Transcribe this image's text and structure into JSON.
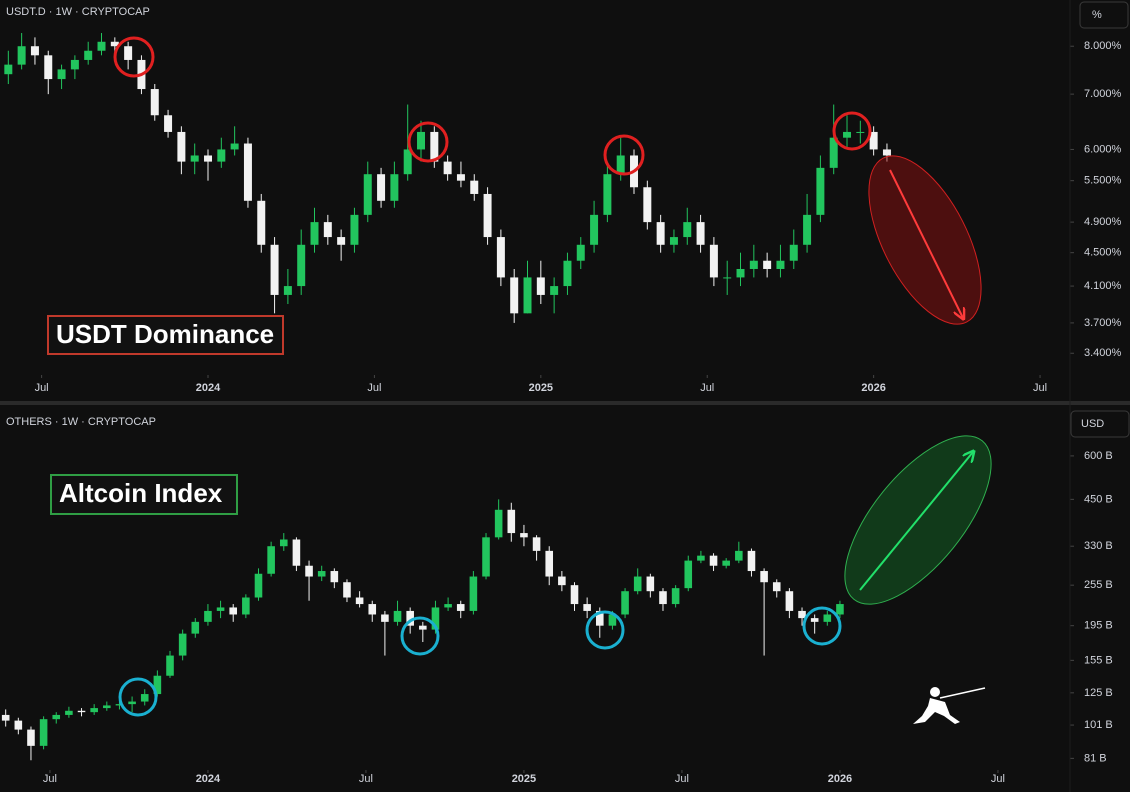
{
  "chart_data": [
    {
      "type": "candlestick",
      "title": "USDT.D · 1W · CRYPTOCAP",
      "annotation": "USDT Dominance",
      "unit": "%",
      "log_scale": true,
      "grid": false,
      "up_color": "#22c55e",
      "down_color": "#f2f2f2",
      "xlim": [
        2023.375,
        2026.59
      ],
      "xticks": [
        {
          "value": 2023.5,
          "label": "Jul"
        },
        2024,
        {
          "value": 2024.5,
          "label": "Jul"
        },
        2025,
        {
          "value": 2025.5,
          "label": "Jul"
        },
        2026,
        {
          "value": 2026.5,
          "label": "Jul"
        }
      ],
      "ylim": [
        3.2,
        9.1
      ],
      "yticks": [
        {
          "value": 8,
          "label": "8.000%"
        },
        {
          "value": 7,
          "label": "7.000%"
        },
        {
          "value": 6,
          "label": "6.000%"
        },
        {
          "value": 5.5,
          "label": "5.500%"
        },
        {
          "value": 4.9,
          "label": "4.900%"
        },
        {
          "value": 4.5,
          "label": "4.500%"
        },
        {
          "value": 4.1,
          "label": "4.100%"
        },
        {
          "value": 3.7,
          "label": "3.700%"
        },
        {
          "value": 3.4,
          "label": "3.400%"
        }
      ],
      "x": [
        2023.4,
        2023.44,
        2023.48,
        2023.52,
        2023.56,
        2023.6,
        2023.64,
        2023.68,
        2023.72,
        2023.76,
        2023.8,
        2023.84,
        2023.88,
        2023.92,
        2023.96,
        2024.0,
        2024.04,
        2024.08,
        2024.12,
        2024.16,
        2024.2,
        2024.24,
        2024.28,
        2024.32,
        2024.36,
        2024.4,
        2024.44,
        2024.48,
        2024.52,
        2024.56,
        2024.6,
        2024.64,
        2024.68,
        2024.72,
        2024.76,
        2024.8,
        2024.84,
        2024.88,
        2024.92,
        2024.96,
        2025.0,
        2025.04,
        2025.08,
        2025.12,
        2025.16,
        2025.2,
        2025.24,
        2025.28,
        2025.32,
        2025.36,
        2025.4,
        2025.44,
        2025.48,
        2025.52,
        2025.56,
        2025.6,
        2025.64,
        2025.68,
        2025.72,
        2025.76,
        2025.8,
        2025.84,
        2025.88,
        2025.92,
        2025.96,
        2026.0,
        2026.04
      ],
      "candles": [
        [
          7.4,
          7.9,
          7.2,
          7.6
        ],
        [
          7.6,
          8.3,
          7.5,
          8.0
        ],
        [
          8.0,
          8.2,
          7.6,
          7.8
        ],
        [
          7.8,
          7.9,
          7.0,
          7.3
        ],
        [
          7.3,
          7.6,
          7.1,
          7.5
        ],
        [
          7.5,
          7.8,
          7.3,
          7.7
        ],
        [
          7.7,
          8.1,
          7.6,
          7.9
        ],
        [
          7.9,
          8.3,
          7.8,
          8.1
        ],
        [
          8.1,
          8.2,
          7.8,
          8.0
        ],
        [
          8.0,
          8.1,
          7.5,
          7.7
        ],
        [
          7.7,
          7.8,
          7.0,
          7.1
        ],
        [
          7.1,
          7.2,
          6.5,
          6.6
        ],
        [
          6.6,
          6.7,
          6.2,
          6.3
        ],
        [
          6.3,
          6.4,
          5.6,
          5.8
        ],
        [
          5.8,
          6.1,
          5.6,
          5.9
        ],
        [
          5.9,
          6.0,
          5.5,
          5.8
        ],
        [
          5.8,
          6.2,
          5.7,
          6.0
        ],
        [
          6.0,
          6.4,
          5.9,
          6.1
        ],
        [
          6.1,
          6.2,
          5.1,
          5.2
        ],
        [
          5.2,
          5.3,
          4.5,
          4.6
        ],
        [
          4.6,
          4.7,
          3.8,
          4.0
        ],
        [
          4.0,
          4.3,
          3.9,
          4.1
        ],
        [
          4.1,
          4.8,
          4.0,
          4.6
        ],
        [
          4.6,
          5.1,
          4.5,
          4.9
        ],
        [
          4.9,
          5.0,
          4.6,
          4.7
        ],
        [
          4.7,
          4.8,
          4.4,
          4.6
        ],
        [
          4.6,
          5.1,
          4.5,
          5.0
        ],
        [
          5.0,
          5.8,
          4.9,
          5.6
        ],
        [
          5.6,
          5.7,
          5.1,
          5.2
        ],
        [
          5.2,
          5.8,
          5.1,
          5.6
        ],
        [
          5.6,
          6.8,
          5.5,
          6.0
        ],
        [
          6.0,
          6.5,
          5.8,
          6.3
        ],
        [
          6.3,
          6.4,
          5.7,
          5.8
        ],
        [
          5.8,
          5.9,
          5.5,
          5.6
        ],
        [
          5.6,
          5.8,
          5.4,
          5.5
        ],
        [
          5.5,
          5.6,
          5.2,
          5.3
        ],
        [
          5.3,
          5.4,
          4.6,
          4.7
        ],
        [
          4.7,
          4.8,
          4.1,
          4.2
        ],
        [
          4.2,
          4.3,
          3.7,
          3.8
        ],
        [
          3.8,
          4.4,
          3.8,
          4.2
        ],
        [
          4.2,
          4.4,
          3.9,
          4.0
        ],
        [
          4.0,
          4.2,
          3.8,
          4.1
        ],
        [
          4.1,
          4.5,
          4.0,
          4.4
        ],
        [
          4.4,
          4.7,
          4.3,
          4.6
        ],
        [
          4.6,
          5.2,
          4.5,
          5.0
        ],
        [
          5.0,
          5.8,
          4.9,
          5.6
        ],
        [
          5.6,
          6.2,
          5.5,
          5.9
        ],
        [
          5.9,
          6.0,
          5.3,
          5.4
        ],
        [
          5.4,
          5.5,
          4.8,
          4.9
        ],
        [
          4.9,
          5.0,
          4.5,
          4.6
        ],
        [
          4.6,
          4.8,
          4.5,
          4.7
        ],
        [
          4.7,
          5.1,
          4.6,
          4.9
        ],
        [
          4.9,
          5.0,
          4.5,
          4.6
        ],
        [
          4.6,
          4.7,
          4.1,
          4.2
        ],
        [
          4.2,
          4.4,
          4.0,
          4.2
        ],
        [
          4.2,
          4.5,
          4.1,
          4.3
        ],
        [
          4.3,
          4.6,
          4.2,
          4.4
        ],
        [
          4.4,
          4.5,
          4.2,
          4.3
        ],
        [
          4.3,
          4.6,
          4.2,
          4.4
        ],
        [
          4.4,
          4.8,
          4.3,
          4.6
        ],
        [
          4.6,
          5.3,
          4.5,
          5.0
        ],
        [
          5.0,
          5.9,
          4.9,
          5.7
        ],
        [
          5.7,
          6.8,
          5.6,
          6.2
        ],
        [
          6.2,
          6.6,
          6.0,
          6.3
        ],
        [
          6.3,
          6.5,
          6.1,
          6.3
        ],
        [
          6.3,
          6.4,
          5.9,
          6.0
        ],
        [
          6.0,
          6.1,
          5.8,
          5.9
        ]
      ]
    },
    {
      "type": "candlestick",
      "title": "OTHERS · 1W · CRYPTOCAP",
      "annotation": "Altcoin Index",
      "unit": "USD",
      "log_scale": true,
      "grid": false,
      "up_color": "#22c55e",
      "down_color": "#f2f2f2",
      "xlim": [
        2023.342,
        2026.728
      ],
      "xticks": [
        {
          "value": 2023.5,
          "label": "Jul"
        },
        2024,
        {
          "value": 2024.5,
          "label": "Jul"
        },
        2025,
        {
          "value": 2025.5,
          "label": "Jul"
        },
        2026,
        {
          "value": 2026.5,
          "label": "Jul"
        }
      ],
      "ylim": [
        75,
        824
      ],
      "yticks": [
        {
          "value": 600,
          "label": "600 B"
        },
        {
          "value": 450,
          "label": "450 B"
        },
        {
          "value": 330,
          "label": "330 B"
        },
        {
          "value": 255,
          "label": "255 B"
        },
        {
          "value": 195,
          "label": "195 B"
        },
        {
          "value": 155,
          "label": "155 B"
        },
        {
          "value": 125,
          "label": "125 B"
        },
        {
          "value": 101,
          "label": "101 B"
        },
        {
          "value": 81,
          "label": "81 B"
        }
      ],
      "x": [
        2023.36,
        2023.4,
        2023.44,
        2023.48,
        2023.52,
        2023.56,
        2023.6,
        2023.64,
        2023.68,
        2023.72,
        2023.76,
        2023.8,
        2023.84,
        2023.88,
        2023.92,
        2023.96,
        2024.0,
        2024.04,
        2024.08,
        2024.12,
        2024.16,
        2024.2,
        2024.24,
        2024.28,
        2024.32,
        2024.36,
        2024.4,
        2024.44,
        2024.48,
        2024.52,
        2024.56,
        2024.6,
        2024.64,
        2024.68,
        2024.72,
        2024.76,
        2024.8,
        2024.84,
        2024.88,
        2024.92,
        2024.96,
        2025.0,
        2025.04,
        2025.08,
        2025.12,
        2025.16,
        2025.2,
        2025.24,
        2025.28,
        2025.32,
        2025.36,
        2025.4,
        2025.44,
        2025.48,
        2025.52,
        2025.56,
        2025.6,
        2025.64,
        2025.68,
        2025.72,
        2025.76,
        2025.8,
        2025.84,
        2025.88,
        2025.92,
        2025.96,
        2026.0
      ],
      "candles": [
        [
          108,
          112,
          100,
          104
        ],
        [
          104,
          106,
          95,
          98
        ],
        [
          98,
          100,
          80,
          88
        ],
        [
          88,
          107,
          86,
          105
        ],
        [
          105,
          110,
          102,
          108
        ],
        [
          108,
          114,
          106,
          111
        ],
        [
          111,
          113,
          107,
          110
        ],
        [
          110,
          116,
          108,
          113
        ],
        [
          113,
          118,
          111,
          115
        ],
        [
          115,
          119,
          112,
          116
        ],
        [
          116,
          122,
          110,
          118
        ],
        [
          118,
          128,
          115,
          124
        ],
        [
          124,
          145,
          122,
          140
        ],
        [
          140,
          165,
          138,
          160
        ],
        [
          160,
          190,
          155,
          185
        ],
        [
          185,
          205,
          180,
          200
        ],
        [
          200,
          225,
          195,
          215
        ],
        [
          215,
          230,
          205,
          220
        ],
        [
          220,
          225,
          200,
          210
        ],
        [
          210,
          240,
          205,
          235
        ],
        [
          235,
          285,
          230,
          275
        ],
        [
          275,
          340,
          270,
          330
        ],
        [
          330,
          360,
          320,
          345
        ],
        [
          345,
          350,
          280,
          290
        ],
        [
          290,
          300,
          230,
          270
        ],
        [
          270,
          290,
          262,
          280
        ],
        [
          280,
          285,
          250,
          260
        ],
        [
          260,
          265,
          228,
          235
        ],
        [
          235,
          245,
          220,
          225
        ],
        [
          225,
          230,
          200,
          210
        ],
        [
          210,
          215,
          160,
          200
        ],
        [
          200,
          230,
          195,
          215
        ],
        [
          215,
          220,
          185,
          195
        ],
        [
          195,
          200,
          175,
          190
        ],
        [
          190,
          230,
          185,
          220
        ],
        [
          220,
          235,
          215,
          225
        ],
        [
          225,
          230,
          205,
          215
        ],
        [
          215,
          280,
          210,
          270
        ],
        [
          270,
          360,
          265,
          350
        ],
        [
          350,
          450,
          345,
          420
        ],
        [
          420,
          440,
          340,
          360
        ],
        [
          360,
          380,
          330,
          350
        ],
        [
          350,
          355,
          300,
          320
        ],
        [
          320,
          330,
          255,
          270
        ],
        [
          270,
          280,
          245,
          255
        ],
        [
          255,
          260,
          215,
          225
        ],
        [
          225,
          235,
          205,
          215
        ],
        [
          215,
          220,
          180,
          195
        ],
        [
          195,
          215,
          190,
          210
        ],
        [
          210,
          250,
          205,
          245
        ],
        [
          245,
          285,
          240,
          270
        ],
        [
          270,
          275,
          235,
          245
        ],
        [
          245,
          250,
          215,
          225
        ],
        [
          225,
          255,
          220,
          250
        ],
        [
          250,
          310,
          245,
          300
        ],
        [
          300,
          320,
          295,
          310
        ],
        [
          310,
          315,
          280,
          290
        ],
        [
          290,
          305,
          285,
          300
        ],
        [
          300,
          340,
          295,
          320
        ],
        [
          320,
          325,
          270,
          280
        ],
        [
          280,
          285,
          160,
          260
        ],
        [
          260,
          265,
          235,
          245
        ],
        [
          245,
          250,
          205,
          215
        ],
        [
          215,
          220,
          195,
          205
        ],
        [
          205,
          210,
          185,
          200
        ],
        [
          200,
          215,
          195,
          210
        ],
        [
          210,
          230,
          205,
          225
        ]
      ]
    }
  ]
}
